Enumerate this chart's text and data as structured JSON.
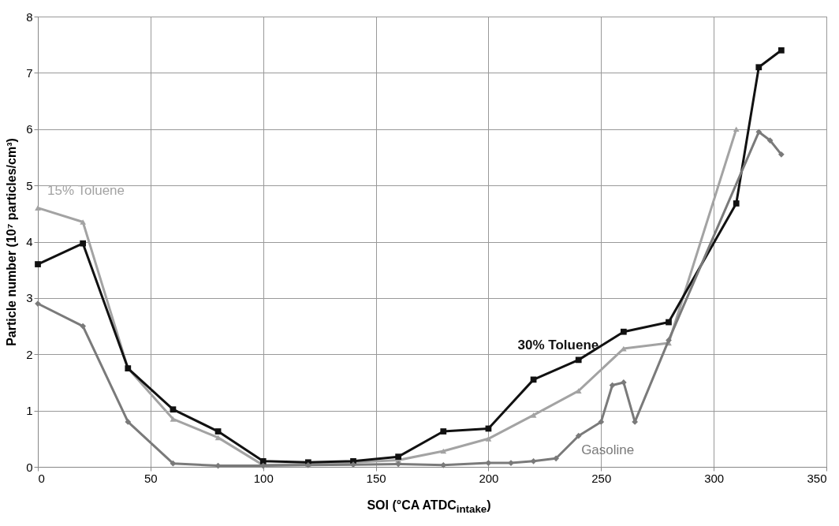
{
  "chart_data": {
    "type": "line",
    "xlabel": "SOI (°CA ATDC$_{intake}$)",
    "ylabel": "Particle number (10⁷ particles/cm³)",
    "xlim": [
      0,
      350
    ],
    "xticks": [
      0,
      50,
      100,
      150,
      200,
      250,
      300,
      350
    ],
    "ylim": [
      0,
      8
    ],
    "yticks": [
      0,
      1,
      2,
      3,
      4,
      5,
      6,
      7,
      8
    ],
    "grid": true,
    "line_style": "solid",
    "series": [
      {
        "name": "15% Toluene",
        "color": "#a3a3a3",
        "marker": "triangle",
        "x": [
          0,
          20,
          40,
          60,
          80,
          100,
          120,
          140,
          160,
          180,
          200,
          220,
          240,
          260,
          280,
          310
        ],
        "values": [
          4.6,
          4.35,
          1.75,
          0.85,
          0.52,
          0.03,
          0.05,
          0.08,
          0.12,
          0.28,
          0.5,
          0.92,
          1.35,
          2.1,
          2.2,
          6.0
        ]
      },
      {
        "name": "30% Toluene",
        "color": "#111111",
        "marker": "square",
        "x": [
          0,
          20,
          40,
          60,
          80,
          100,
          120,
          140,
          160,
          180,
          200,
          220,
          240,
          260,
          280,
          310,
          320,
          330
        ],
        "values": [
          3.6,
          3.97,
          1.75,
          1.02,
          0.63,
          0.1,
          0.08,
          0.1,
          0.18,
          0.63,
          0.68,
          1.55,
          1.9,
          2.4,
          2.57,
          4.68,
          7.1,
          7.4
        ]
      },
      {
        "name": "Gasoline",
        "color": "#7a7a7a",
        "marker": "diamond",
        "x": [
          0,
          20,
          40,
          60,
          80,
          100,
          120,
          140,
          160,
          180,
          200,
          210,
          220,
          230,
          240,
          250,
          255,
          260,
          265,
          280,
          320,
          325,
          330
        ],
        "values": [
          2.9,
          2.5,
          0.8,
          0.06,
          0.02,
          0.02,
          0.03,
          0.04,
          0.05,
          0.03,
          0.07,
          0.07,
          0.1,
          0.15,
          0.55,
          0.8,
          1.45,
          1.5,
          0.8,
          2.25,
          5.95,
          5.8,
          5.55
        ]
      }
    ]
  }
}
